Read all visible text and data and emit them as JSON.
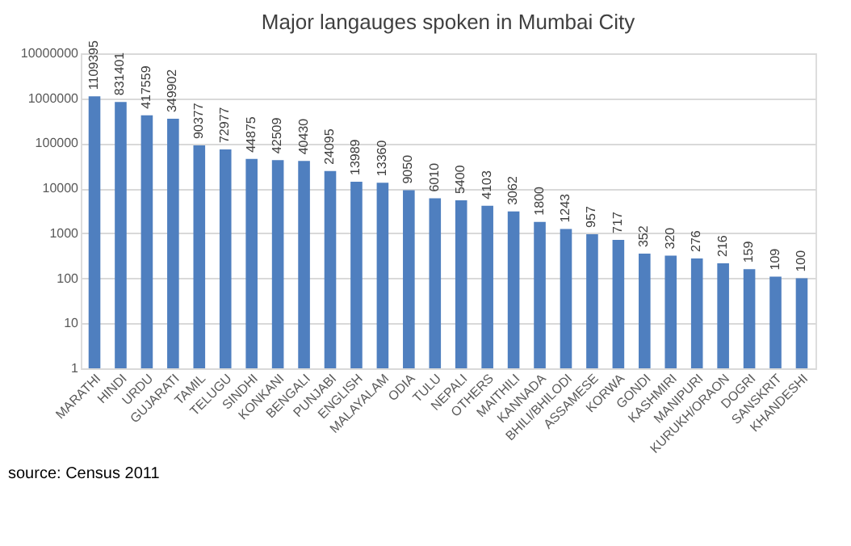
{
  "chart_data": {
    "type": "bar",
    "title": "Major langauges spoken in Mumbai City",
    "categories": [
      "MARATHI",
      "HINDI",
      "URDU",
      "GUJARATI",
      "TAMIL",
      "TELUGU",
      "SINDHI",
      "KONKANI",
      "BENGALI",
      "PUNJABI",
      "ENGLISH",
      "MALAYALAM",
      "ODIA",
      "TULU",
      "NEPALI",
      "OTHERS",
      "MAITHILI",
      "KANNADA",
      "BHILI/BHILODI",
      "ASSAMESE",
      "KORWA",
      "GONDI",
      "KASHMIRI",
      "MANIPURI",
      "KURUKH/ORAON",
      "DOGRI",
      "SANSKRIT",
      "KHANDESHI"
    ],
    "values": [
      1109395,
      831401,
      417559,
      349902,
      90377,
      72977,
      44875,
      42509,
      40430,
      24095,
      13989,
      13360,
      9050,
      6010,
      5400,
      4103,
      3062,
      1800,
      1243,
      957,
      717,
      352,
      320,
      276,
      216,
      159,
      109,
      100
    ],
    "color": "#4f7fbf",
    "log": true,
    "ylim": [
      1,
      10000000
    ],
    "yticks": [
      1,
      10,
      100,
      1000,
      10000,
      100000,
      1000000,
      10000000
    ],
    "grid": "y",
    "data_labels": true,
    "annotations": [
      "source: Census 2011"
    ]
  }
}
